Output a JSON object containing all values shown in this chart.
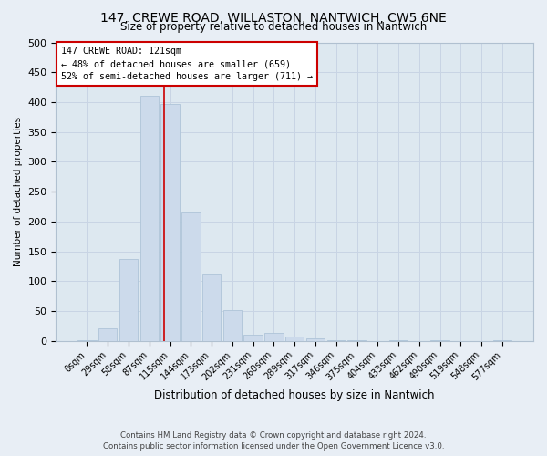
{
  "title": "147, CREWE ROAD, WILLASTON, NANTWICH, CW5 6NE",
  "subtitle": "Size of property relative to detached houses in Nantwich",
  "xlabel": "Distribution of detached houses by size in Nantwich",
  "ylabel": "Number of detached properties",
  "bar_color": "#ccdaeb",
  "bar_edge_color": "#aec4d8",
  "bin_labels": [
    "0sqm",
    "29sqm",
    "58sqm",
    "87sqm",
    "115sqm",
    "144sqm",
    "173sqm",
    "202sqm",
    "231sqm",
    "260sqm",
    "289sqm",
    "317sqm",
    "346sqm",
    "375sqm",
    "404sqm",
    "433sqm",
    "462sqm",
    "490sqm",
    "519sqm",
    "548sqm",
    "577sqm"
  ],
  "bar_heights": [
    2,
    22,
    137,
    410,
    397,
    215,
    113,
    52,
    11,
    14,
    8,
    5,
    2,
    1,
    0,
    2,
    0,
    2,
    0,
    0,
    2
  ],
  "vline_x": 3.71,
  "annotation_text": "147 CREWE ROAD: 121sqm\n← 48% of detached houses are smaller (659)\n52% of semi-detached houses are larger (711) →",
  "annotation_box_color": "#ffffff",
  "annotation_box_edge_color": "#cc0000",
  "vline_color": "#cc0000",
  "ylim": [
    0,
    500
  ],
  "yticks": [
    0,
    50,
    100,
    150,
    200,
    250,
    300,
    350,
    400,
    450,
    500
  ],
  "grid_color": "#c8d4e4",
  "background_color": "#dde8f0",
  "fig_background_color": "#e8eef5",
  "footer_line1": "Contains HM Land Registry data © Crown copyright and database right 2024.",
  "footer_line2": "Contains public sector information licensed under the Open Government Licence v3.0."
}
